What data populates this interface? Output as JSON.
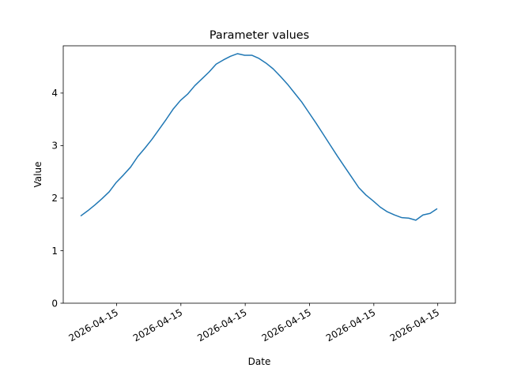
{
  "chart_data": {
    "type": "line",
    "title": "Parameter values",
    "xlabel": "Date",
    "ylabel": "Value",
    "ylim": [
      0,
      4.9
    ],
    "y_ticks": [
      0,
      1,
      2,
      3,
      4
    ],
    "x_tick_labels": [
      "2026-04-15",
      "2026-04-15",
      "2026-04-15",
      "2026-04-15",
      "2026-04-15",
      "2026-04-15"
    ],
    "x_tick_positions": [
      0.136,
      0.3,
      0.464,
      0.628,
      0.792,
      0.955
    ],
    "grid": false,
    "line_color": "#1f77b4",
    "series": [
      {
        "x": [
          0,
          0.02,
          0.04,
          0.06,
          0.08,
          0.1,
          0.12,
          0.14,
          0.16,
          0.18,
          0.2,
          0.22,
          0.24,
          0.26,
          0.28,
          0.3,
          0.32,
          0.34,
          0.36,
          0.38,
          0.4,
          0.42,
          0.44,
          0.46,
          0.48,
          0.5,
          0.52,
          0.54,
          0.56,
          0.58,
          0.6,
          0.62,
          0.64,
          0.66,
          0.68,
          0.7,
          0.72,
          0.74,
          0.76,
          0.78,
          0.8,
          0.82,
          0.84,
          0.86,
          0.88,
          0.9,
          0.92,
          0.94,
          0.96,
          0.98,
          1.0
        ],
        "values": [
          1.66,
          1.76,
          1.87,
          1.99,
          2.12,
          2.3,
          2.44,
          2.59,
          2.79,
          2.95,
          3.12,
          3.31,
          3.5,
          3.7,
          3.86,
          3.98,
          4.14,
          4.27,
          4.4,
          4.55,
          4.63,
          4.7,
          4.75,
          4.72,
          4.72,
          4.66,
          4.57,
          4.46,
          4.32,
          4.17,
          4.0,
          3.83,
          3.63,
          3.43,
          3.22,
          3.01,
          2.8,
          2.6,
          2.4,
          2.2,
          2.06,
          1.95,
          1.83,
          1.74,
          1.68,
          1.63,
          1.62,
          1.58,
          1.68,
          1.71,
          1.8
        ]
      }
    ]
  }
}
